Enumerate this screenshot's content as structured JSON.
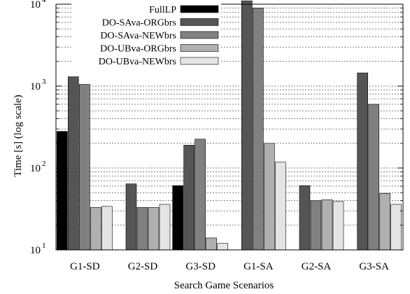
{
  "chart_data": {
    "type": "bar",
    "scale": "log",
    "categories": [
      "G1-SD",
      "G2-SD",
      "G3-SD",
      "G1-SA",
      "G2-SA",
      "G3-SA"
    ],
    "series": [
      {
        "name": "FullLP",
        "color": "#000000",
        "values": [
          280,
          null,
          61,
          null,
          null,
          null
        ]
      },
      {
        "name": "DO-SAva-ORGbrs",
        "color": "#555555",
        "values": [
          1300,
          64,
          190,
          11000,
          61,
          1450
        ]
      },
      {
        "name": "DO-SAva-NEWbrs",
        "color": "#808080",
        "values": [
          1050,
          33,
          225,
          9000,
          40,
          600
        ]
      },
      {
        "name": "DO-UBva-ORGbrs",
        "color": "#b0b0b0",
        "values": [
          33,
          33,
          14,
          200,
          41,
          49
        ]
      },
      {
        "name": "DO-UBva-NEWbrs",
        "color": "#e4e4e4",
        "values": [
          34,
          36,
          12,
          118,
          39,
          36
        ]
      }
    ],
    "ylim": [
      10,
      10000
    ],
    "y_ticks": [
      {
        "base": "10",
        "exp": "1"
      },
      {
        "base": "10",
        "exp": "2"
      },
      {
        "base": "10",
        "exp": "3"
      },
      {
        "base": "10",
        "exp": "4"
      }
    ],
    "xlabel": "Search Game Scenarios",
    "ylabel": "Time [s] (log scale)",
    "grid": "horizontal dashed at minor and major log ticks",
    "legend_position": "top-left"
  }
}
